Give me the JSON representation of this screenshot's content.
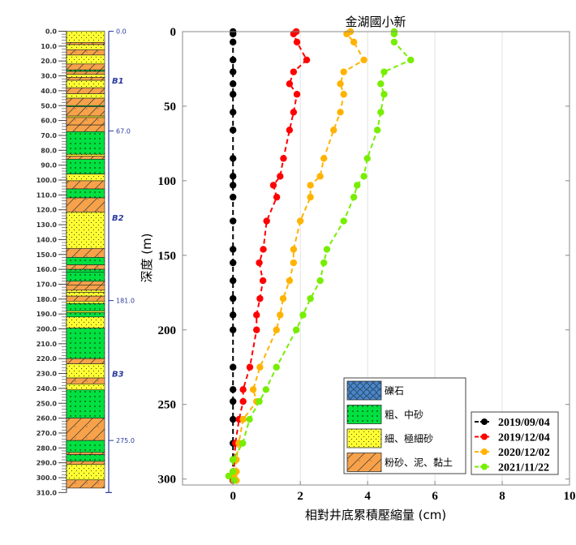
{
  "borehole": {
    "depth_ticks": [
      "0.0",
      "10.0",
      "20.0",
      "30.0",
      "40.0",
      "50.0",
      "60.0",
      "70.0",
      "80.0",
      "90.0",
      "100.0",
      "110.0",
      "120.0",
      "130.0",
      "140.0",
      "150.0",
      "160.0",
      "170.0",
      "180.0",
      "190.0",
      "200.0",
      "210.0",
      "220.0",
      "230.0",
      "240.0",
      "250.0",
      "260.0",
      "270.0",
      "280.0",
      "290.0",
      "300.0",
      "310.0"
    ],
    "depth_range": [
      0,
      310
    ],
    "boundaries": [
      {
        "depth": 0,
        "label": "0.0"
      },
      {
        "depth": 67,
        "label": "67.0"
      },
      {
        "depth": 181,
        "label": "181.0"
      },
      {
        "depth": 275,
        "label": "275.0"
      }
    ],
    "units": [
      {
        "label": "B1",
        "depth": 33
      },
      {
        "label": "B2",
        "depth": 125
      },
      {
        "label": "B3",
        "depth": 230
      }
    ],
    "layers": [
      {
        "top": 0,
        "bottom": 7.6,
        "type": "fine"
      },
      {
        "top": 7.6,
        "bottom": 9,
        "type": "silt"
      },
      {
        "top": 9,
        "bottom": 12.4,
        "type": "fine"
      },
      {
        "top": 12.4,
        "bottom": 16,
        "type": "silt"
      },
      {
        "top": 16,
        "bottom": 22,
        "type": "fine"
      },
      {
        "top": 22,
        "bottom": 26,
        "type": "silt"
      },
      {
        "top": 26,
        "bottom": 27,
        "type": "coarse"
      },
      {
        "top": 27,
        "bottom": 29,
        "type": "silt"
      },
      {
        "top": 29,
        "bottom": 31,
        "type": "fine"
      },
      {
        "top": 31,
        "bottom": 33,
        "type": "silt"
      },
      {
        "top": 33,
        "bottom": 38,
        "type": "fine"
      },
      {
        "top": 38,
        "bottom": 42,
        "type": "silt"
      },
      {
        "top": 42,
        "bottom": 45,
        "type": "fine"
      },
      {
        "top": 45,
        "bottom": 50,
        "type": "silt"
      },
      {
        "top": 50,
        "bottom": 50.7,
        "type": "coarse"
      },
      {
        "top": 50.7,
        "bottom": 57,
        "type": "silt"
      },
      {
        "top": 57,
        "bottom": 58,
        "type": "fine"
      },
      {
        "top": 58,
        "bottom": 63,
        "type": "silt"
      },
      {
        "top": 63,
        "bottom": 67.5,
        "type": "silt"
      },
      {
        "top": 67.5,
        "bottom": 82.7,
        "type": "coarse"
      },
      {
        "top": 82.7,
        "bottom": 84,
        "type": "fine"
      },
      {
        "top": 84,
        "bottom": 86,
        "type": "silt"
      },
      {
        "top": 86,
        "bottom": 96,
        "type": "coarse"
      },
      {
        "top": 96,
        "bottom": 100.5,
        "type": "fine"
      },
      {
        "top": 100.5,
        "bottom": 106,
        "type": "silt"
      },
      {
        "top": 106,
        "bottom": 112,
        "type": "coarse"
      },
      {
        "top": 112,
        "bottom": 121.5,
        "type": "silt"
      },
      {
        "top": 121.5,
        "bottom": 146,
        "type": "fine"
      },
      {
        "top": 146,
        "bottom": 152,
        "type": "silt"
      },
      {
        "top": 152,
        "bottom": 157,
        "type": "coarse"
      },
      {
        "top": 157,
        "bottom": 160,
        "type": "silt"
      },
      {
        "top": 160,
        "bottom": 162,
        "type": "coarse"
      },
      {
        "top": 162,
        "bottom": 168,
        "type": "coarse"
      },
      {
        "top": 168,
        "bottom": 170.5,
        "type": "silt"
      },
      {
        "top": 170.5,
        "bottom": 174,
        "type": "silt"
      },
      {
        "top": 174,
        "bottom": 175.5,
        "type": "fine"
      },
      {
        "top": 175.5,
        "bottom": 178,
        "type": "fine"
      },
      {
        "top": 178,
        "bottom": 181.4,
        "type": "silt"
      },
      {
        "top": 181.4,
        "bottom": 183,
        "type": "fine"
      },
      {
        "top": 183,
        "bottom": 188,
        "type": "coarse"
      },
      {
        "top": 188,
        "bottom": 189,
        "type": "fine"
      },
      {
        "top": 189,
        "bottom": 192,
        "type": "coarse"
      },
      {
        "top": 192,
        "bottom": 199.5,
        "type": "fine"
      },
      {
        "top": 199.5,
        "bottom": 220,
        "type": "coarse"
      },
      {
        "top": 220,
        "bottom": 223.5,
        "type": "silt"
      },
      {
        "top": 223.5,
        "bottom": 233,
        "type": "fine"
      },
      {
        "top": 233,
        "bottom": 237,
        "type": "silt"
      },
      {
        "top": 237,
        "bottom": 241,
        "type": "fine"
      },
      {
        "top": 241,
        "bottom": 260,
        "type": "coarse"
      },
      {
        "top": 260,
        "bottom": 275,
        "type": "silt"
      },
      {
        "top": 275,
        "bottom": 283,
        "type": "coarse"
      },
      {
        "top": 283,
        "bottom": 284.5,
        "type": "silt"
      },
      {
        "top": 284.5,
        "bottom": 289,
        "type": "coarse"
      },
      {
        "top": 289,
        "bottom": 291,
        "type": "silt"
      },
      {
        "top": 291,
        "bottom": 301.5,
        "type": "fine"
      },
      {
        "top": 301.5,
        "bottom": 307,
        "type": "silt"
      }
    ]
  },
  "lithology_legend": [
    {
      "type": "gravel",
      "label": "礫石",
      "color": "#4a86c8"
    },
    {
      "type": "coarse",
      "label": "粗、中砂",
      "color": "#00e040"
    },
    {
      "type": "fine",
      "label": "細、極細砂",
      "color": "#ffff33"
    },
    {
      "type": "silt",
      "label": "粉砂、泥、黏土",
      "color": "#f7a24a"
    }
  ],
  "chart_data": {
    "type": "line",
    "title": "金湖國小新",
    "xlabel": "相對井底累積壓縮量 (cm)",
    "ylabel": "深度 (m)",
    "xlim": [
      -1.5,
      10
    ],
    "ylim": [
      0,
      304
    ],
    "y_reversed": true,
    "xticks": [
      "0",
      "2",
      "4",
      "6",
      "8",
      "10"
    ],
    "yticks": [
      "0",
      "50",
      "100",
      "150",
      "200",
      "250",
      "300"
    ],
    "grid": "vertical",
    "legend_position": "bottom-right",
    "depths": [
      0,
      1.5,
      7,
      19,
      27,
      35,
      42,
      54,
      66,
      85,
      97,
      103,
      111,
      127,
      146,
      155,
      167,
      179,
      190,
      200,
      225,
      240,
      248,
      260,
      276,
      287,
      295,
      298,
      301
    ],
    "series": [
      {
        "name": "2019/09/04",
        "color": "#000000",
        "values": [
          0,
          0,
          0,
          0,
          0,
          0,
          0,
          0,
          0,
          0,
          0,
          0,
          0,
          0,
          0,
          0,
          0,
          0,
          0,
          0,
          0,
          0,
          0,
          0,
          0,
          0,
          0,
          0,
          0
        ]
      },
      {
        "name": "2019/12/04",
        "color": "#ff0000",
        "values": [
          1.88,
          1.8,
          1.9,
          2.19,
          1.8,
          1.68,
          1.9,
          1.8,
          1.68,
          1.5,
          1.4,
          1.2,
          1.3,
          1.0,
          0.9,
          0.78,
          0.89,
          0.8,
          0.7,
          0.7,
          0.5,
          0.3,
          0.3,
          0.18,
          0.07,
          0.05,
          0.02,
          0,
          0
        ]
      },
      {
        "name": "2020/12/02",
        "color": "#ffb300",
        "values": [
          3.49,
          3.38,
          3.59,
          3.89,
          3.29,
          3.19,
          3.29,
          3.19,
          2.99,
          2.7,
          2.59,
          2.3,
          2.3,
          2.0,
          1.8,
          1.8,
          1.68,
          1.49,
          1.4,
          1.29,
          0.8,
          0.6,
          0.7,
          0.3,
          0.17,
          0.1,
          0.1,
          0.03,
          0.1
        ]
      },
      {
        "name": "2021/11/22",
        "color": "#77ee00",
        "values": [
          4.79,
          4.79,
          4.79,
          5.28,
          4.49,
          4.39,
          4.49,
          4.39,
          4.29,
          3.99,
          3.89,
          3.69,
          3.59,
          3.29,
          2.79,
          2.7,
          2.59,
          2.3,
          2.08,
          1.88,
          1.29,
          0.98,
          0.78,
          0.49,
          0.29,
          0,
          0,
          -0.13,
          0.03
        ]
      }
    ]
  }
}
